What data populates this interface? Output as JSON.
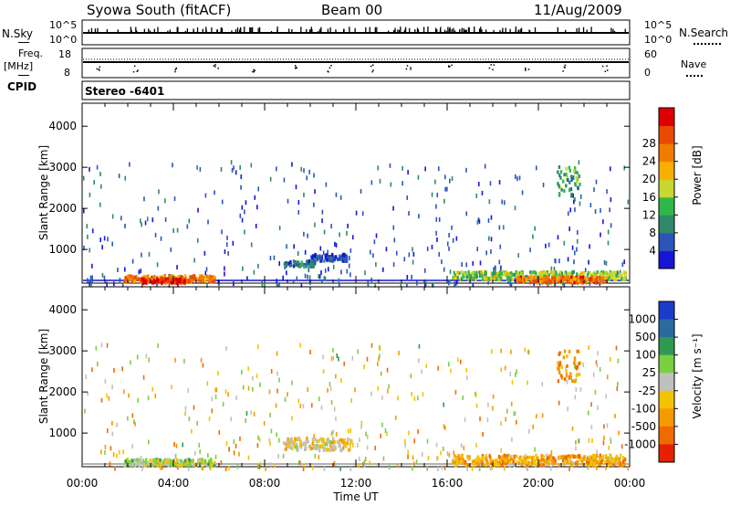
{
  "header": {
    "radar": "Syowa South (fitACF)",
    "beam": "Beam 00",
    "date": "11/Aug/2009"
  },
  "top_panels": {
    "nsky_label": "N.Sky",
    "nsky_ticks": [
      "10^5",
      "10^0"
    ],
    "nsearch_label": "N.Search",
    "nsearch_ticks": [
      "10^5",
      "10^0"
    ],
    "freq_label": "Freq.",
    "freq_unit": "[MHz]",
    "freq_ticks": [
      "18",
      "8"
    ],
    "nave_label": "Nave",
    "nave_ticks": [
      "60",
      "0"
    ],
    "cpid_label": "CPID",
    "cpid_value": "Stereo -6401"
  },
  "chart_data": [
    {
      "type": "heatmap",
      "name": "power",
      "ylabel": "Slant Range [km]",
      "ylim": [
        180,
        4560
      ],
      "yticks": [
        1000,
        2000,
        3000,
        4000
      ],
      "xlim": [
        0,
        24
      ],
      "colorbar": {
        "label": "Power [dB]",
        "ticks": [
          "4",
          "8",
          "12",
          "16",
          "20",
          "24",
          "28"
        ],
        "colors": [
          "#1515d8",
          "#2c55b8",
          "#2e8a6a",
          "#2fb84a",
          "#c8d830",
          "#f5b000",
          "#f27c00",
          "#e84a00",
          "#dd0000"
        ]
      },
      "features": [
        {
          "t0": 1.8,
          "t1": 5.8,
          "r0": 250,
          "r1": 400,
          "level": 0.75
        },
        {
          "t0": 2.5,
          "t1": 4.5,
          "r0": 220,
          "r1": 330,
          "level": 0.95
        },
        {
          "t0": 8.8,
          "t1": 10.2,
          "r0": 620,
          "r1": 760,
          "level": 0.2
        },
        {
          "t0": 10.0,
          "t1": 11.6,
          "r0": 760,
          "r1": 920,
          "level": 0.1
        },
        {
          "t0": 16.2,
          "t1": 23.8,
          "r0": 300,
          "r1": 500,
          "level": 0.45
        },
        {
          "t0": 19.0,
          "t1": 23.0,
          "r0": 230,
          "r1": 380,
          "level": 0.8
        },
        {
          "t0": 20.8,
          "t1": 21.8,
          "r0": 2300,
          "r1": 3050,
          "level": 0.3
        }
      ]
    },
    {
      "type": "heatmap",
      "name": "velocity",
      "ylabel": "Slant Range [km]",
      "ylim": [
        180,
        4560
      ],
      "yticks": [
        1000,
        2000,
        3000,
        4000
      ],
      "xlim": [
        0,
        24
      ],
      "xticks": [
        "00:00",
        "04:00",
        "08:00",
        "12:00",
        "16:00",
        "20:00",
        "00:00"
      ],
      "xlabel": "Time UT",
      "colorbar": {
        "label": "Velocity [m s⁻¹]",
        "ticks": [
          "1000",
          "500",
          "100",
          "25",
          "-25",
          "-100",
          "-500",
          "-1000"
        ],
        "colors": [
          "#1a3cc8",
          "#2a6aa0",
          "#2e9a50",
          "#7ad040",
          "#c0c0c0",
          "#f2c400",
          "#f59a00",
          "#f06a00",
          "#e62000"
        ]
      },
      "features": [
        {
          "t0": 1.8,
          "t1": 5.8,
          "r0": 250,
          "r1": 400,
          "level": 0.45
        },
        {
          "t0": 8.8,
          "t1": 11.8,
          "r0": 620,
          "r1": 920,
          "level": 0.6
        },
        {
          "t0": 16.2,
          "t1": 23.8,
          "r0": 250,
          "r1": 500,
          "level": 0.72
        },
        {
          "t0": 20.8,
          "t1": 21.8,
          "r0": 2300,
          "r1": 3050,
          "level": 0.75
        }
      ]
    }
  ]
}
